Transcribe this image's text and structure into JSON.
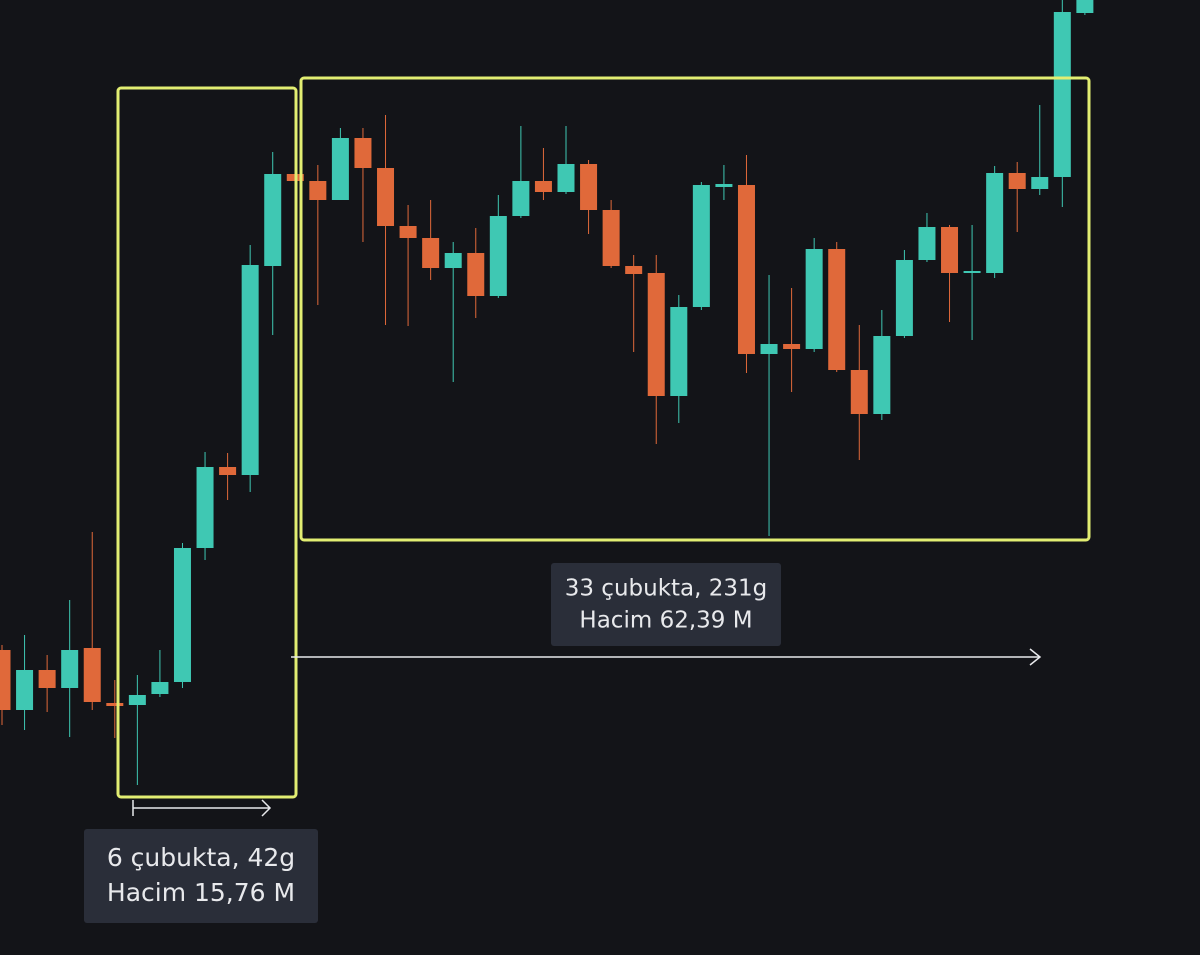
{
  "chart_data": {
    "type": "candlestick",
    "up_color": "#3fc8b3",
    "down_color": "#e0693a",
    "ylim": [
      0,
      95.5
    ],
    "open": [
      30.5,
      24.5,
      28.5,
      26.7,
      30.7,
      25.2,
      25,
      26.1,
      27.3,
      40.7,
      48.8,
      48,
      68.9,
      78.1,
      77.4,
      75.5,
      81.7,
      78.7,
      72.9,
      71.7,
      68.7,
      70.2,
      65.9,
      73.9,
      77.4,
      76.3,
      79.1,
      74.5,
      68.9,
      68.2,
      55.9,
      64.8,
      76.8,
      77,
      60.1,
      61.1,
      60.6,
      70.6,
      58.5,
      54.1,
      61.9,
      69.5,
      72.8,
      68.2,
      68.2,
      78.2,
      76.6,
      77.8,
      94.2
    ],
    "high": [
      31,
      32,
      30,
      35.5,
      42.3,
      27.5,
      28,
      30.5,
      41.2,
      50.3,
      50.2,
      71,
      80.3,
      85.5,
      79,
      82.7,
      82.7,
      84,
      75,
      75.5,
      71.3,
      72.7,
      76,
      82.9,
      80.7,
      82.9,
      79.5,
      75.5,
      70,
      70,
      66,
      77.3,
      79,
      80,
      68,
      66.7,
      71.7,
      71.3,
      63,
      64.5,
      70.5,
      74.2,
      73,
      73,
      78.9,
      79.3,
      85,
      95.5,
      95.5
    ],
    "low": [
      23,
      22.5,
      24.3,
      21.8,
      24.5,
      21.7,
      17,
      25.8,
      26.7,
      39.5,
      45.5,
      46.3,
      62,
      71.5,
      65,
      75.5,
      71.3,
      63,
      62.9,
      67.5,
      57.3,
      63.7,
      65.7,
      73.7,
      75.5,
      76.1,
      72.1,
      68.7,
      60.3,
      51.1,
      53.2,
      64.5,
      75.5,
      58.2,
      41.9,
      56.3,
      60.3,
      58.3,
      49.5,
      53.5,
      61.7,
      69.3,
      63.3,
      61.5,
      67.7,
      72.3,
      76,
      74.8,
      94
    ],
    "close": [
      24.5,
      28.5,
      26.7,
      30.5,
      25.3,
      24.9,
      26,
      27.3,
      40.7,
      48.8,
      48,
      69,
      78.1,
      77.4,
      75.5,
      81.7,
      78.7,
      72.9,
      71.7,
      68.7,
      70.2,
      65.9,
      73.9,
      77.4,
      76.3,
      79.1,
      74.5,
      68.9,
      68.1,
      55.9,
      64.8,
      77,
      77.1,
      60.1,
      61.1,
      60.6,
      70.6,
      58.5,
      54.1,
      61.9,
      69.5,
      72.8,
      68.2,
      68.4,
      78.2,
      76.6,
      77.8,
      94.3,
      95.5
    ],
    "annotations": [
      {
        "lines": [
          "6 çubukta, 42g",
          "Hacim 15,76 M"
        ]
      },
      {
        "lines": [
          "33 çubukta, 231g",
          "Hacim 62,39 M"
        ]
      }
    ]
  }
}
